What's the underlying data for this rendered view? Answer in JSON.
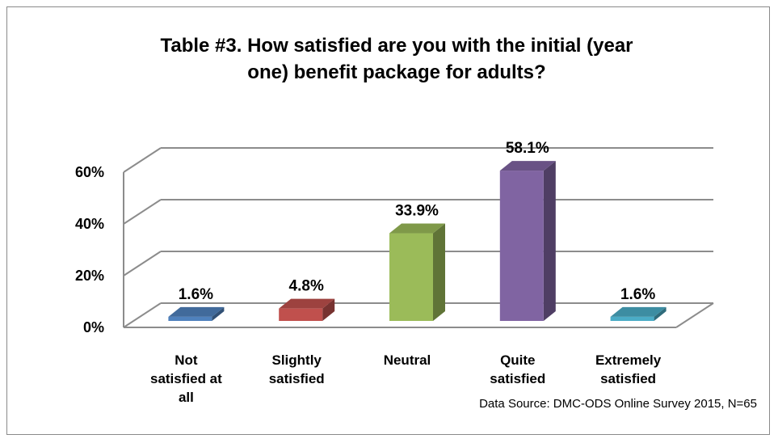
{
  "chart_data": {
    "type": "bar",
    "title_lines": [
      "Table #3.  How satisfied are you with the initial (year",
      "one) benefit package for adults?"
    ],
    "categories": [
      [
        "Not",
        "satisfied at",
        "all"
      ],
      [
        "Slightly",
        "satisfied"
      ],
      [
        "Neutral"
      ],
      [
        "Quite",
        "satisfied"
      ],
      [
        "Extremely",
        "satisfied"
      ]
    ],
    "values": [
      1.6,
      4.8,
      33.9,
      58.1,
      1.6
    ],
    "data_labels": [
      "1.6%",
      "4.8%",
      "33.9%",
      "58.1%",
      "1.6%"
    ],
    "ylim": [
      0,
      60
    ],
    "yticks": [
      0,
      20,
      40,
      60
    ],
    "ytick_labels": [
      "0%",
      "20%",
      "40%",
      "60%"
    ],
    "grid": true,
    "style": "3d-column",
    "colors": [
      "#4f81bd",
      "#c0504d",
      "#9bbb59",
      "#8064a2",
      "#4bacc6"
    ],
    "xlabel": "",
    "ylabel": ""
  },
  "source_note": "Data Source: DMC-ODS Online Survey 2015, N=65"
}
